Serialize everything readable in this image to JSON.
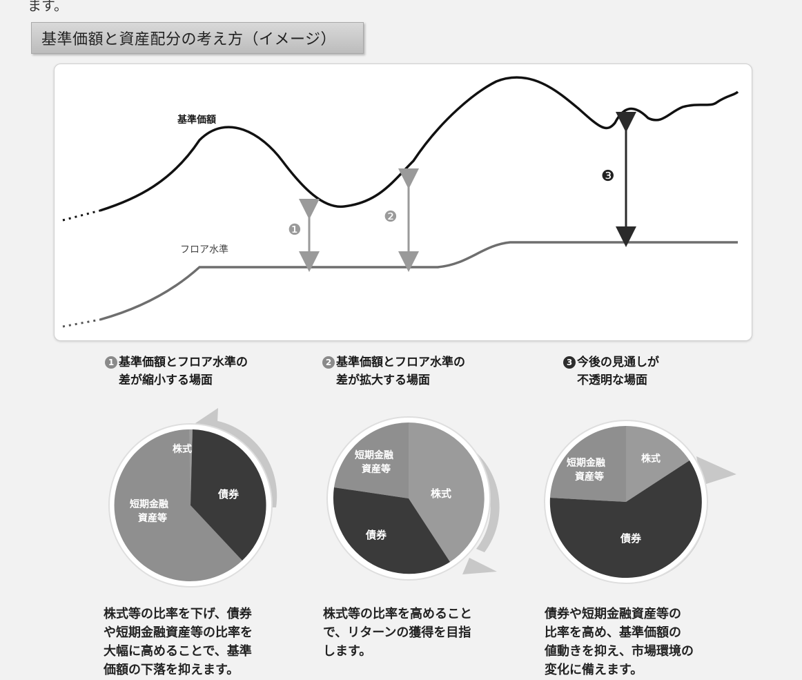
{
  "top_fragment": "ます。",
  "title": "基準価額と資産配分の考え方（イメージ）",
  "chart": {
    "nav_label": "基準価額",
    "floor_label": "フロア水準",
    "markers": [
      "❶",
      "❷",
      "❸"
    ]
  },
  "scenarios": [
    {
      "marker": "1",
      "heading_line1": "基準価額とフロア水準の",
      "heading_line2": "差が縮小する場面",
      "pie_labels": {
        "stock": "株式",
        "bond": "債券",
        "money_line1": "短期金融",
        "money_line2": "資産等"
      },
      "description": [
        "株式等の比率を下げ、債券",
        "や短期金融資産等の比率を",
        "大幅に高めることで、基準",
        "価額の下落を抑えます。"
      ]
    },
    {
      "marker": "2",
      "heading_line1": "基準価額とフロア水準の",
      "heading_line2": "差が拡大する場面",
      "pie_labels": {
        "stock": "株式",
        "bond": "債券",
        "money_line1": "短期金融",
        "money_line2": "資産等"
      },
      "description": [
        "株式等の比率を高めること",
        "で、リターンの獲得を目指",
        "します。"
      ]
    },
    {
      "marker": "3",
      "heading_line1": "今後の見通しが",
      "heading_line2": "不透明な場面",
      "pie_labels": {
        "stock": "株式",
        "bond": "債券",
        "money_line1": "短期金融",
        "money_line2": "資産等"
      },
      "description": [
        "債券や短期金融資産等の",
        "比率を高め、基準価額の",
        "値動きを抑え、市場環境の",
        "変化に備えます。"
      ]
    }
  ],
  "colors": {
    "stock_light": "#9b9b9b",
    "bond": "#3a3a3a",
    "money": "#8f8f8f",
    "floor_line": "#6e6e6e",
    "arrow_light": "#9a9a9a",
    "arrow_dark": "#2a2a2a"
  }
}
